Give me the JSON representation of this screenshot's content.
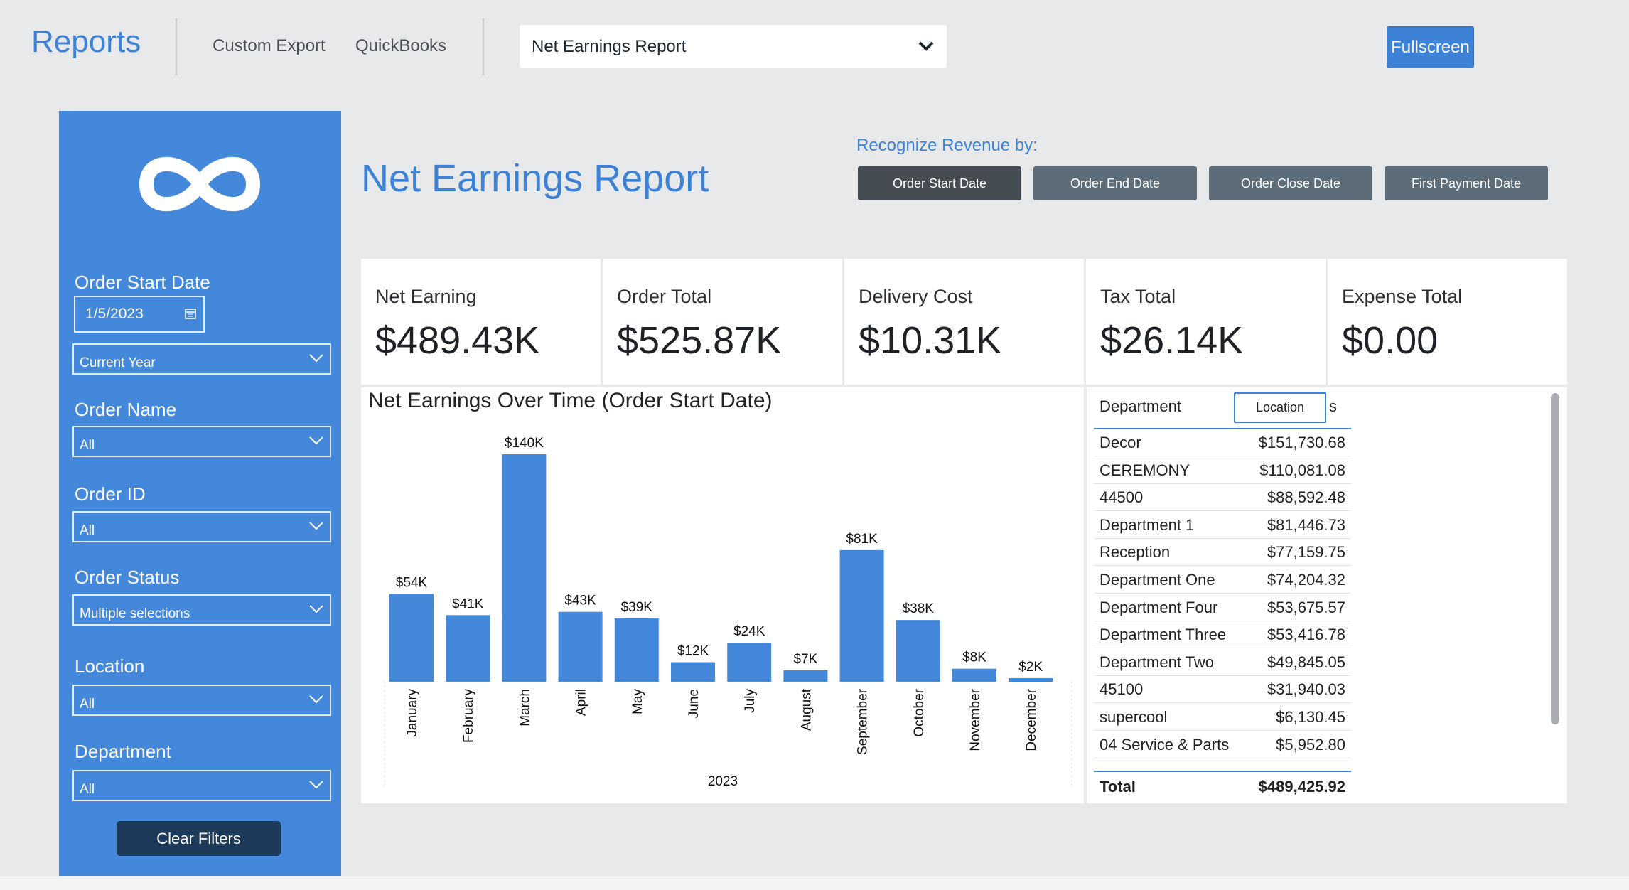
{
  "nav": {
    "brand": "Reports",
    "links": [
      "Custom Export",
      "QuickBooks"
    ],
    "report_select": "Net Earnings Report",
    "fullscreen": "Fullscreen"
  },
  "sidebar": {
    "logo_icon": "infinity-logo-icon",
    "order_start_date": {
      "label": "Order Start Date",
      "value": "1/5/2023",
      "range": "Current Year"
    },
    "order_name": {
      "label": "Order Name",
      "value": "All"
    },
    "order_id": {
      "label": "Order ID",
      "value": "All"
    },
    "order_status": {
      "label": "Order Status",
      "value": "Multiple selections"
    },
    "location": {
      "label": "Location",
      "value": "All"
    },
    "department": {
      "label": "Department",
      "value": "All"
    },
    "clear_filters": "Clear Filters"
  },
  "header": {
    "title": "Net Earnings Report",
    "recognize_label": "Recognize Revenue by:",
    "recognize_options": [
      "Order Start Date",
      "Order End Date",
      "Order Close Date",
      "First Payment Date"
    ],
    "recognize_selected": "Order Start Date"
  },
  "kpis": [
    {
      "label": "Net Earning",
      "value": "$489.43K"
    },
    {
      "label": "Order Total",
      "value": "$525.87K"
    },
    {
      "label": "Delivery Cost",
      "value": "$10.31K"
    },
    {
      "label": "Tax Total",
      "value": "$26.14K"
    },
    {
      "label": "Expense Total",
      "value": "$0.00"
    }
  ],
  "chart_data": {
    "type": "bar",
    "title": "Net Earnings Over Time (Order Start Date)",
    "xlabel": "2023",
    "ylabel": "",
    "categories": [
      "January",
      "February",
      "March",
      "April",
      "May",
      "June",
      "July",
      "August",
      "September",
      "October",
      "November",
      "December"
    ],
    "values": [
      54,
      41,
      140,
      43,
      39,
      12,
      24,
      7,
      81,
      38,
      8,
      2
    ],
    "data_labels": [
      "$54K",
      "$41K",
      "$140K",
      "$43K",
      "$39K",
      "$12K",
      "$24K",
      "$7K",
      "$81K",
      "$38K",
      "$8K",
      "$2K"
    ],
    "ylim": [
      0,
      140
    ],
    "color": "#4388da",
    "grid": false,
    "legend": "none"
  },
  "table": {
    "col_department": "Department",
    "col_location": "Location",
    "col_s": "s",
    "rows": [
      {
        "name": "Decor",
        "value": "$151,730.68"
      },
      {
        "name": "CEREMONY",
        "value": "$110,081.08"
      },
      {
        "name": "44500",
        "value": "$88,592.48"
      },
      {
        "name": "Department 1",
        "value": "$81,446.73"
      },
      {
        "name": "Reception",
        "value": "$77,159.75"
      },
      {
        "name": "Department One",
        "value": "$74,204.32"
      },
      {
        "name": "Department Four",
        "value": "$53,675.57"
      },
      {
        "name": "Department Three",
        "value": "$53,416.78"
      },
      {
        "name": "Department Two",
        "value": "$49,845.05"
      },
      {
        "name": "45100",
        "value": "$31,940.03"
      },
      {
        "name": "supercool",
        "value": "$6,130.45"
      },
      {
        "name": "04 Service & Parts",
        "value": "$5,952.80"
      }
    ],
    "total_label": "Total",
    "total_value": "$489,425.92"
  }
}
